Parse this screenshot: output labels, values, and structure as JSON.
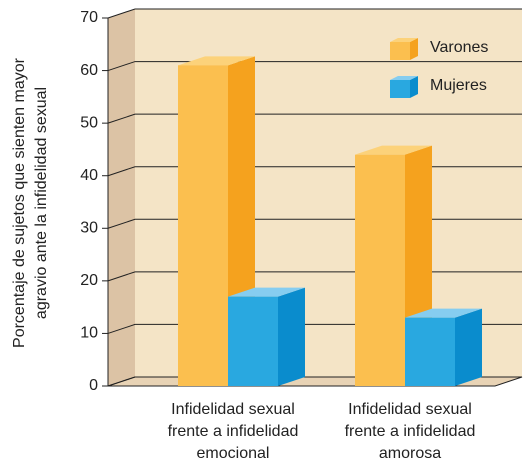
{
  "chart_data": {
    "type": "bar3d",
    "ylabel": [
      "Porcentaje de sujetos que sienten mayor",
      "agravio ante la infidelidad sexual"
    ],
    "categories": [
      [
        "Infidelidad sexual",
        "frente a infidelidad",
        "emocional"
      ],
      [
        "Infidelidad sexual",
        "frente a infidelidad",
        "amorosa"
      ]
    ],
    "series": [
      {
        "name": "Varones",
        "color": "#fbbf4f",
        "side": "#f5a21e",
        "top": "#fcd27a",
        "values": [
          61,
          44
        ]
      },
      {
        "name": "Mujeres",
        "color": "#29a8e0",
        "side": "#0a8ccd",
        "top": "#86cdf0",
        "values": [
          17,
          13
        ]
      }
    ],
    "ylim": [
      0,
      70
    ],
    "yticks": [
      0,
      10,
      20,
      30,
      40,
      50,
      60,
      70
    ],
    "grid": true
  }
}
